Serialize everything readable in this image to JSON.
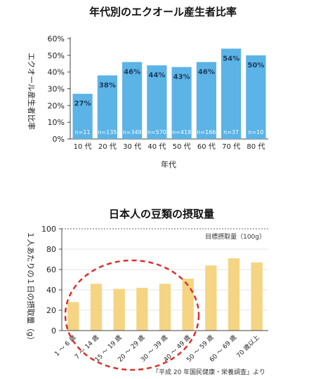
{
  "chart_data": [
    {
      "type": "bar",
      "title": "年代別のエクオール産生者比率",
      "xlabel": "年代",
      "ylabel": "エクオール産生者比率",
      "categories": [
        "10 代",
        "20 代",
        "30 代",
        "40 代",
        "50 代",
        "60 代",
        "70 代",
        "80 代"
      ],
      "values": [
        27,
        38,
        46,
        44,
        43,
        46,
        54,
        50
      ],
      "value_labels": [
        "27%",
        "38%",
        "46%",
        "44%",
        "43%",
        "46%",
        "54%",
        "50%"
      ],
      "sample_labels": [
        "n=11",
        "n=135",
        "n=349",
        "n=570",
        "n=419",
        "n=166",
        "n=37",
        "n=10"
      ],
      "ylim": [
        0,
        60
      ],
      "yticks": [
        "0%",
        "10%",
        "20%",
        "30%",
        "40%",
        "50%",
        "60%"
      ],
      "grid": false,
      "bar_color": "#5bb3e6"
    },
    {
      "type": "bar",
      "title": "日本人の豆類の摂取量",
      "xlabel": "",
      "ylabel": "１人あたりの１日の摂取量（g）",
      "categories": [
        "1 ～ 6 歳",
        "7 ～ 14 歳",
        "15 ～ 19 歳",
        "20 ～ 29 歳",
        "30 ～ 39 歳",
        "40 ～ 49 歳",
        "50 ～ 59 歳",
        "60 ～ 69 歳",
        "70 歳以上"
      ],
      "values": [
        28,
        46,
        41,
        42,
        46,
        51,
        64,
        71,
        67
      ],
      "ylim": [
        0,
        100
      ],
      "yticks": [
        "0",
        "20",
        "40",
        "60",
        "80",
        "100"
      ],
      "target_value": 100,
      "target_label": "目標摂取量（100g）",
      "source_note": "「平成 20 年国民健康・栄養調査」より",
      "grid": true,
      "bar_color": "#f5d584",
      "highlight_color": "#d9302b"
    }
  ]
}
